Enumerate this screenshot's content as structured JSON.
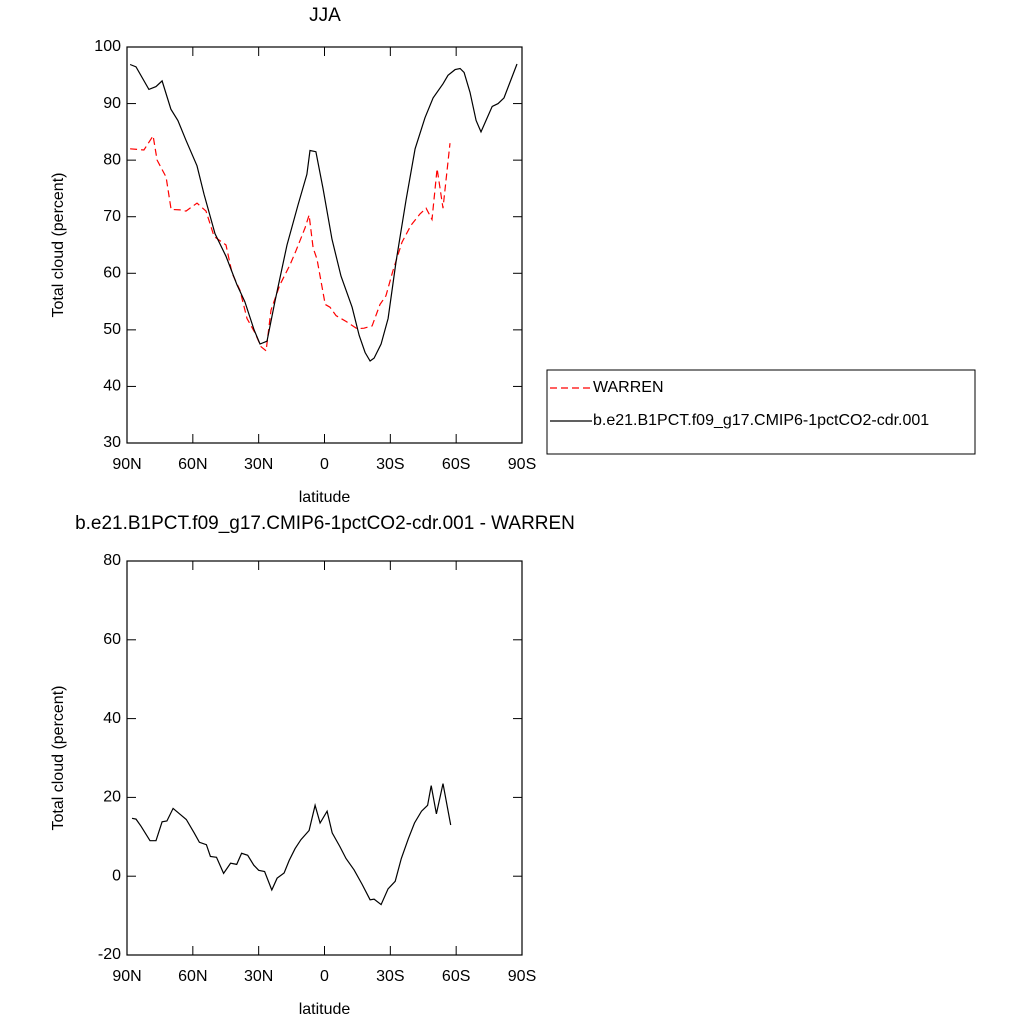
{
  "chart_data": [
    {
      "type": "line",
      "title": "JJA",
      "xlabel": "latitude",
      "ylabel": "Total cloud (percent)",
      "xlim": [
        90,
        -90
      ],
      "xticks": [
        {
          "value": 90,
          "label": "90N"
        },
        {
          "value": 60,
          "label": "60N"
        },
        {
          "value": 30,
          "label": "30N"
        },
        0,
        {
          "value": -30,
          "label": "30S"
        },
        {
          "value": -60,
          "label": "60S"
        },
        {
          "value": -90,
          "label": "90S"
        }
      ],
      "ylim": [
        30,
        100
      ],
      "yticks": [
        30,
        40,
        50,
        60,
        70,
        80,
        90,
        100
      ],
      "series": [
        {
          "name": "WARREN",
          "color": "#ff0000",
          "line_style": "dashed",
          "x": [
            88.6,
            82.3,
            78.1,
            76.3,
            72.2,
            69.9,
            65.8,
            63.1,
            58.1,
            54,
            50.3,
            44.9,
            42.1,
            38.5,
            35.3,
            31.7,
            28.9,
            26.6,
            24.4,
            20.3,
            15.7,
            13,
            8.9,
            7,
            5.2,
            3.4,
            -0.3,
            -2.5,
            -5.3,
            -9.8,
            -14.8,
            -18,
            -21.7,
            -25.3,
            -28,
            -31.2,
            -35.3,
            -39.4,
            -43.5,
            -46.3,
            -49,
            -51.3,
            -54,
            -57.2
          ],
          "values": [
            82,
            81.8,
            84.3,
            80,
            77,
            71.3,
            71.2,
            71,
            72.4,
            71,
            66.5,
            65,
            60,
            57,
            52,
            49.5,
            47,
            46.3,
            53.5,
            58,
            61.5,
            64,
            68,
            70.3,
            64.5,
            62.5,
            54.5,
            54,
            52.5,
            51.5,
            50.2,
            50.3,
            50.7,
            54.5,
            56,
            60.5,
            65.5,
            68.5,
            70.5,
            71.5,
            69.5,
            78.5,
            71.5,
            83
          ]
        },
        {
          "name": "b.e21.B1PCT.f09_g17.CMIP6-1pctCO2-cdr.001",
          "color": "#000000",
          "line_style": "solid",
          "x": [
            88.6,
            85.9,
            80,
            76.8,
            74,
            70,
            66.8,
            63.1,
            58.1,
            54.9,
            49.9,
            44.9,
            39.9,
            36.3,
            32.1,
            29.4,
            26.2,
            22.6,
            17.1,
            12.1,
            8,
            6.6,
            3.9,
            0.7,
            -3.4,
            -7.5,
            -12.6,
            -15.8,
            -18.5,
            -20.8,
            -22.6,
            -25.8,
            -29,
            -32.6,
            -37.2,
            -41.3,
            -45.8,
            -49.5,
            -54,
            -56.3,
            -59.5,
            -61.8,
            -63.6,
            -66.3,
            -69.1,
            -71.3,
            -73.6,
            -76.4,
            -79.1,
            -81.8,
            -87.7
          ],
          "values": [
            96.9,
            96.5,
            92.5,
            93,
            94,
            89,
            87,
            83.5,
            79,
            74,
            67,
            63,
            58,
            55,
            50,
            47.5,
            48,
            55,
            65,
            72,
            77.5,
            81.7,
            81.5,
            75,
            66,
            59.5,
            54,
            49,
            46,
            44.5,
            45,
            47.5,
            52,
            62,
            73,
            82,
            87.5,
            91,
            93.5,
            95,
            96,
            96.2,
            95.5,
            92,
            87,
            85,
            87,
            89.5,
            90,
            91,
            97
          ]
        }
      ]
    },
    {
      "type": "line",
      "title": "b.e21.B1PCT.f09_g17.CMIP6-1pctCO2-cdr.001 - WARREN",
      "xlabel": "latitude",
      "ylabel": "Total cloud (percent)",
      "xlim": [
        90,
        -90
      ],
      "xticks": [
        {
          "value": 90,
          "label": "90N"
        },
        {
          "value": 60,
          "label": "60N"
        },
        {
          "value": 30,
          "label": "30N"
        },
        0,
        {
          "value": -30,
          "label": "30S"
        },
        {
          "value": -60,
          "label": "60S"
        },
        {
          "value": -90,
          "label": "90S"
        }
      ],
      "ylim": [
        -20,
        80
      ],
      "yticks": [
        -20,
        0,
        20,
        40,
        60,
        80
      ],
      "series": [
        {
          "color": "#000000",
          "line_style": "solid",
          "x": [
            87.7,
            85.9,
            83.6,
            79.5,
            76.8,
            74,
            71.8,
            69,
            65.8,
            63,
            59.4,
            57,
            53.8,
            52,
            49.2,
            46,
            42.8,
            40,
            37.8,
            35,
            32.2,
            30,
            27.3,
            24,
            21.6,
            18.4,
            16.1,
            13.4,
            10.7,
            7,
            4.3,
            2,
            -1.2,
            -3.5,
            -7,
            -9.8,
            -13.5,
            -17.1,
            -20.8,
            -22.6,
            -25.8,
            -29,
            -32.2,
            -35,
            -38.2,
            -41,
            -44.2,
            -47,
            -48.6,
            -51,
            -54,
            -57.5
          ],
          "values": [
            14.7,
            14.5,
            12.7,
            9,
            9,
            13.8,
            14,
            17.2,
            15.7,
            14.4,
            11,
            8.6,
            8,
            5,
            4.8,
            0.7,
            3.3,
            3,
            5.8,
            5.3,
            2.8,
            1.5,
            1.2,
            -3.5,
            -0.5,
            0.8,
            4,
            7,
            9.3,
            11.6,
            18,
            13.5,
            16.5,
            11,
            7.5,
            4.5,
            1.6,
            -2,
            -6,
            -5.8,
            -7.2,
            -3.2,
            -1.3,
            4.5,
            9.5,
            13.5,
            16.5,
            18,
            23,
            15.8,
            23.5,
            13
          ]
        }
      ]
    }
  ]
}
